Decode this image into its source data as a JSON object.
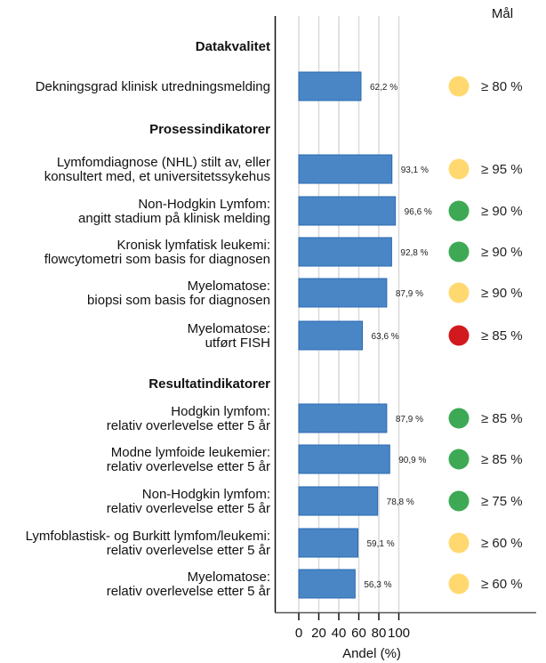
{
  "chart_data": {
    "type": "bar",
    "orientation": "horizontal",
    "xlabel": "Andel (%)",
    "xlim": [
      0,
      100
    ],
    "xticks": [
      "0",
      "20",
      "40",
      "60",
      "80",
      "100"
    ],
    "grid": true,
    "target_header": "Mål",
    "colors": {
      "bar": "#4A86C5",
      "bar_border": "#2A6AB2",
      "yellow": "#FFD970",
      "green": "#3DA955",
      "red": "#D2191E"
    },
    "rows": [
      {
        "type": "header",
        "label": "Datakvalitet"
      },
      {
        "type": "bar",
        "label": [
          "Dekningsgrad klinisk utredningsmelding"
        ],
        "value": 62.2,
        "value_label": "62,2 %",
        "status": "yellow",
        "target": "≥ 80 %"
      },
      {
        "type": "header",
        "label": "Prosessindikatorer"
      },
      {
        "type": "bar",
        "label": [
          "Lymfomdiagnose (NHL) stilt av, eller",
          "konsultert med, et universitetssykehus"
        ],
        "value": 93.1,
        "value_label": "93,1 %",
        "status": "yellow",
        "target": "≥ 95 %"
      },
      {
        "type": "bar",
        "label": [
          "Non-Hodgkin Lymfom:",
          "angitt stadium på klinisk melding"
        ],
        "value": 96.6,
        "value_label": "96,6 %",
        "status": "green",
        "target": "≥ 90 %"
      },
      {
        "type": "bar",
        "label": [
          "Kronisk lymfatisk leukemi:",
          "flowcytometri som basis for diagnosen"
        ],
        "value": 92.8,
        "value_label": "92,8 %",
        "status": "green",
        "target": "≥ 90 %"
      },
      {
        "type": "bar",
        "label": [
          "Myelomatose:",
          "biopsi som basis for diagnosen"
        ],
        "value": 87.9,
        "value_label": "87,9 %",
        "status": "yellow",
        "target": "≥ 90 %"
      },
      {
        "type": "bar",
        "label": [
          "Myelomatose:",
          "utført FISH"
        ],
        "value": 63.6,
        "value_label": "63,6 %",
        "status": "red",
        "target": "≥ 85 %"
      },
      {
        "type": "header",
        "label": "Resultatindikatorer"
      },
      {
        "type": "bar",
        "label": [
          "Hodgkin lymfom:",
          "relativ overlevelse etter 5 år"
        ],
        "value": 87.9,
        "value_label": "87,9 %",
        "status": "green",
        "target": "≥ 85 %"
      },
      {
        "type": "bar",
        "label": [
          "Modne lymfoide leukemier:",
          "relativ overlevelse etter 5 år"
        ],
        "value": 90.9,
        "value_label": "90,9 %",
        "status": "green",
        "target": "≥ 85 %"
      },
      {
        "type": "bar",
        "label": [
          "Non-Hodgkin lymfom:",
          "relativ overlevelse etter 5 år"
        ],
        "value": 78.8,
        "value_label": "78,8 %",
        "status": "green",
        "target": "≥ 75 %"
      },
      {
        "type": "bar",
        "label": [
          "Lymfoblastisk- og Burkitt lymfom/leukemi:",
          "relativ overlevelse etter 5 år"
        ],
        "value": 59.1,
        "value_label": "59,1 %",
        "status": "yellow",
        "target": "≥ 60 %"
      },
      {
        "type": "bar",
        "label": [
          "Myelomatose:",
          "relativ overlevelse etter 5 år"
        ],
        "value": 56.3,
        "value_label": "56,3 %",
        "status": "yellow",
        "target": "≥ 60 %"
      }
    ]
  }
}
